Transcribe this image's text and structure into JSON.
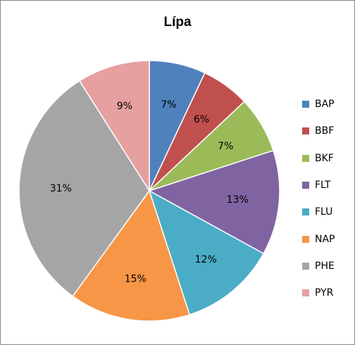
{
  "chart_data": {
    "type": "pie",
    "title": "Lípa",
    "categories": [
      "BAP",
      "BBF",
      "BKF",
      "FLT",
      "FLU",
      "NAP",
      "PHE",
      "PYR"
    ],
    "values": [
      7,
      6,
      7,
      13,
      12,
      15,
      31,
      9
    ],
    "labels": [
      "7%",
      "6%",
      "7%",
      "13%",
      "12%",
      "15%",
      "31%",
      "9%"
    ],
    "colors": [
      "#4F81BD",
      "#C0504D",
      "#9BBB59",
      "#8064A2",
      "#4BACC6",
      "#F79646",
      "#A5A5A5",
      "#E6A0A0"
    ],
    "legend_position": "right"
  }
}
